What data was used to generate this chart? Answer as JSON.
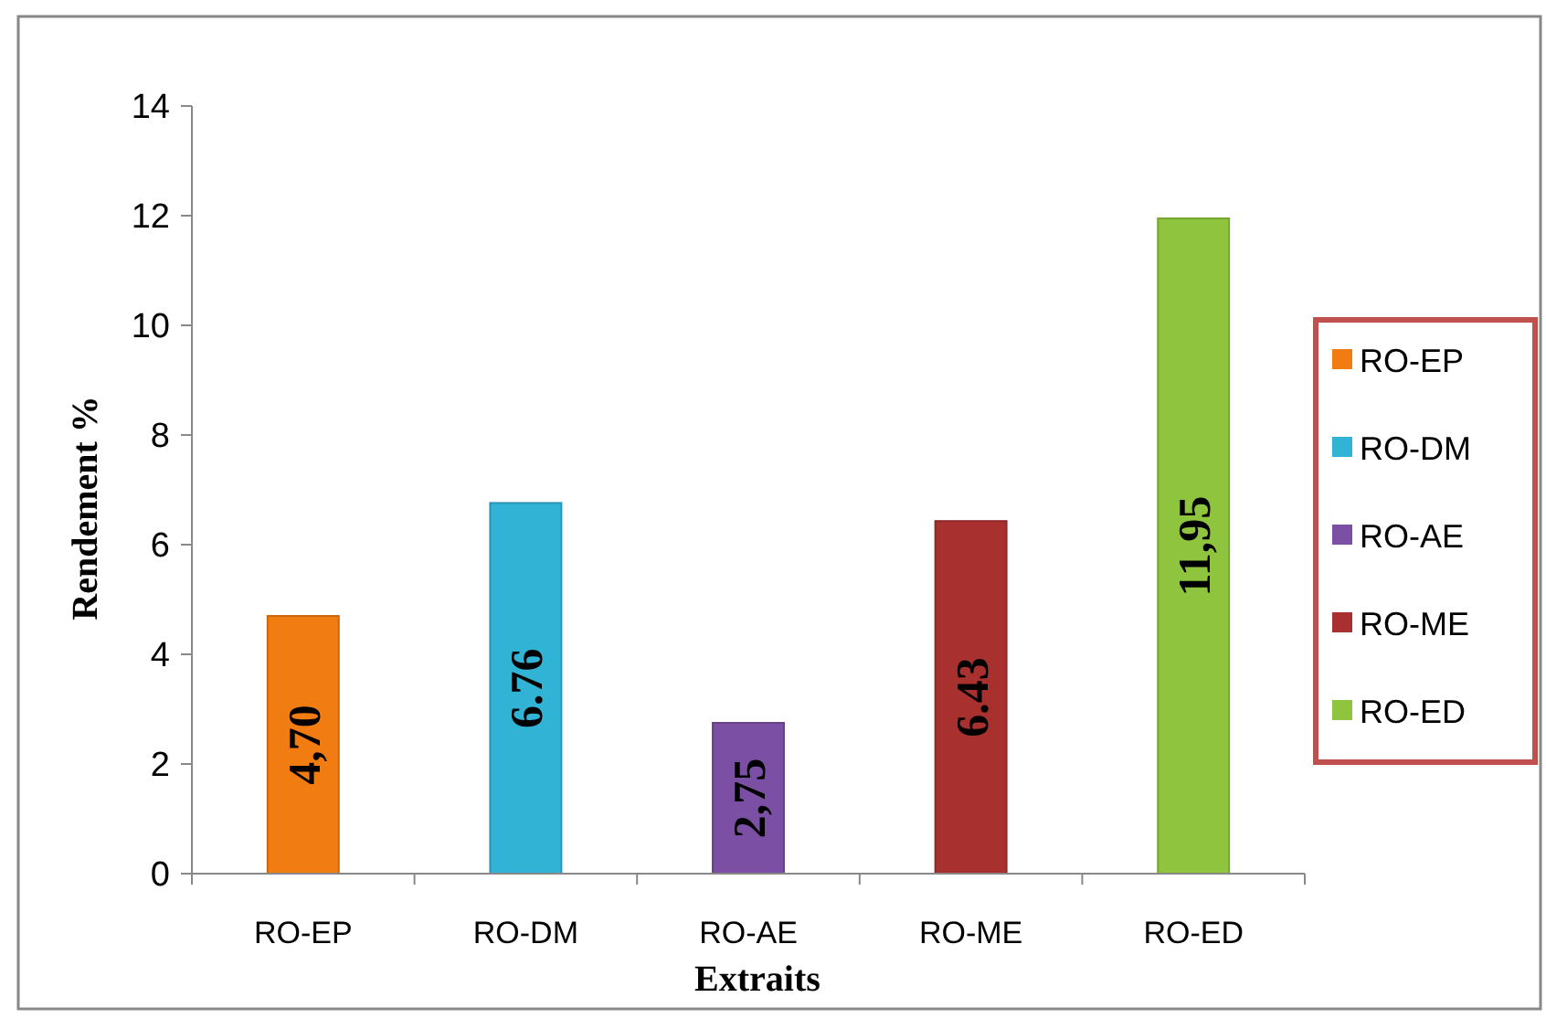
{
  "chart_data": {
    "type": "bar",
    "xlabel": "Extraits",
    "ylabel": "Rendement %",
    "categories": [
      "RO-EP",
      "RO-DM",
      "RO-AE",
      "RO-ME",
      "RO-ED"
    ],
    "ylim": [
      0,
      14
    ],
    "yticks": [
      0,
      2,
      4,
      6,
      8,
      10,
      12,
      14
    ],
    "grid": false,
    "legend": "right",
    "series": [
      {
        "name": "RO-EP",
        "color": "#f07c12",
        "values": [
          4.7,
          null,
          null,
          null,
          null
        ],
        "value_labels": [
          "4,70",
          null,
          null,
          null,
          null
        ]
      },
      {
        "name": "RO-DM",
        "color": "#31b3d6",
        "values": [
          null,
          6.76,
          null,
          null,
          null
        ],
        "value_labels": [
          null,
          "6.76",
          null,
          null,
          null
        ]
      },
      {
        "name": "RO-AE",
        "color": "#7b4fa3",
        "values": [
          null,
          null,
          2.75,
          null,
          null
        ],
        "value_labels": [
          null,
          null,
          "2,75",
          null,
          null
        ]
      },
      {
        "name": "RO-ME",
        "color": "#a8302e",
        "values": [
          null,
          null,
          null,
          6.43,
          null
        ],
        "value_labels": [
          null,
          null,
          null,
          "6.43",
          null
        ]
      },
      {
        "name": "RO-ED",
        "color": "#8fc43e",
        "values": [
          null,
          null,
          null,
          null,
          11.95
        ],
        "value_labels": [
          null,
          null,
          null,
          null,
          "11,95"
        ]
      }
    ]
  }
}
